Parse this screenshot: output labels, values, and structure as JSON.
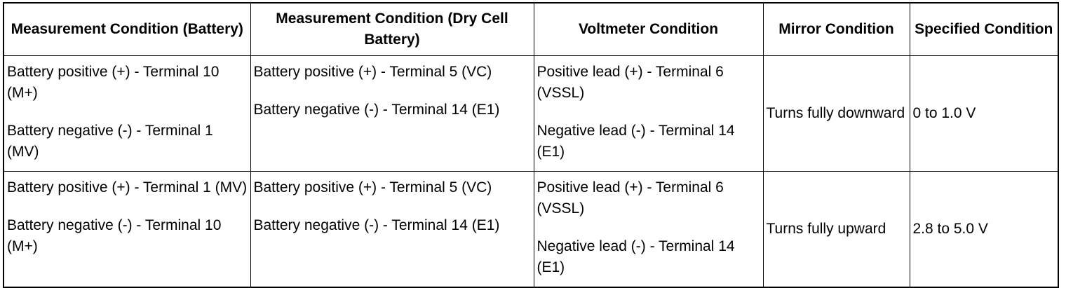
{
  "table": {
    "headers": [
      "Measurement Condition (Battery)",
      "Measurement Condition (Dry Cell Battery)",
      "Voltmeter Condition",
      "Mirror Condition",
      "Specified Condition"
    ],
    "rows": [
      {
        "battery": {
          "positive": "Battery positive (+) - Terminal 10 (M+)",
          "negative": "Battery negative (-) - Terminal 1 (MV)"
        },
        "dry_cell": {
          "positive": "Battery positive (+) - Terminal 5 (VC)",
          "negative": "Battery negative (-) - Terminal 14 (E1)"
        },
        "voltmeter": {
          "positive": "Positive lead (+) - Terminal 6 (VSSL)",
          "negative": "Negative lead (-) - Terminal 14 (E1)"
        },
        "mirror": "Turns fully downward",
        "specified": "0 to 1.0 V"
      },
      {
        "battery": {
          "positive": "Battery positive (+) - Terminal 1 (MV)",
          "negative": "Battery negative (-) - Terminal 10 (M+)"
        },
        "dry_cell": {
          "positive": "Battery positive (+) - Terminal 5 (VC)",
          "negative": "Battery negative (-) - Terminal 14 (E1)"
        },
        "voltmeter": {
          "positive": "Positive lead (+) - Terminal 6 (VSSL)",
          "negative": "Negative lead (-) - Terminal 14 (E1)"
        },
        "mirror": "Turns fully upward",
        "specified": "2.8 to 5.0 V"
      }
    ]
  }
}
